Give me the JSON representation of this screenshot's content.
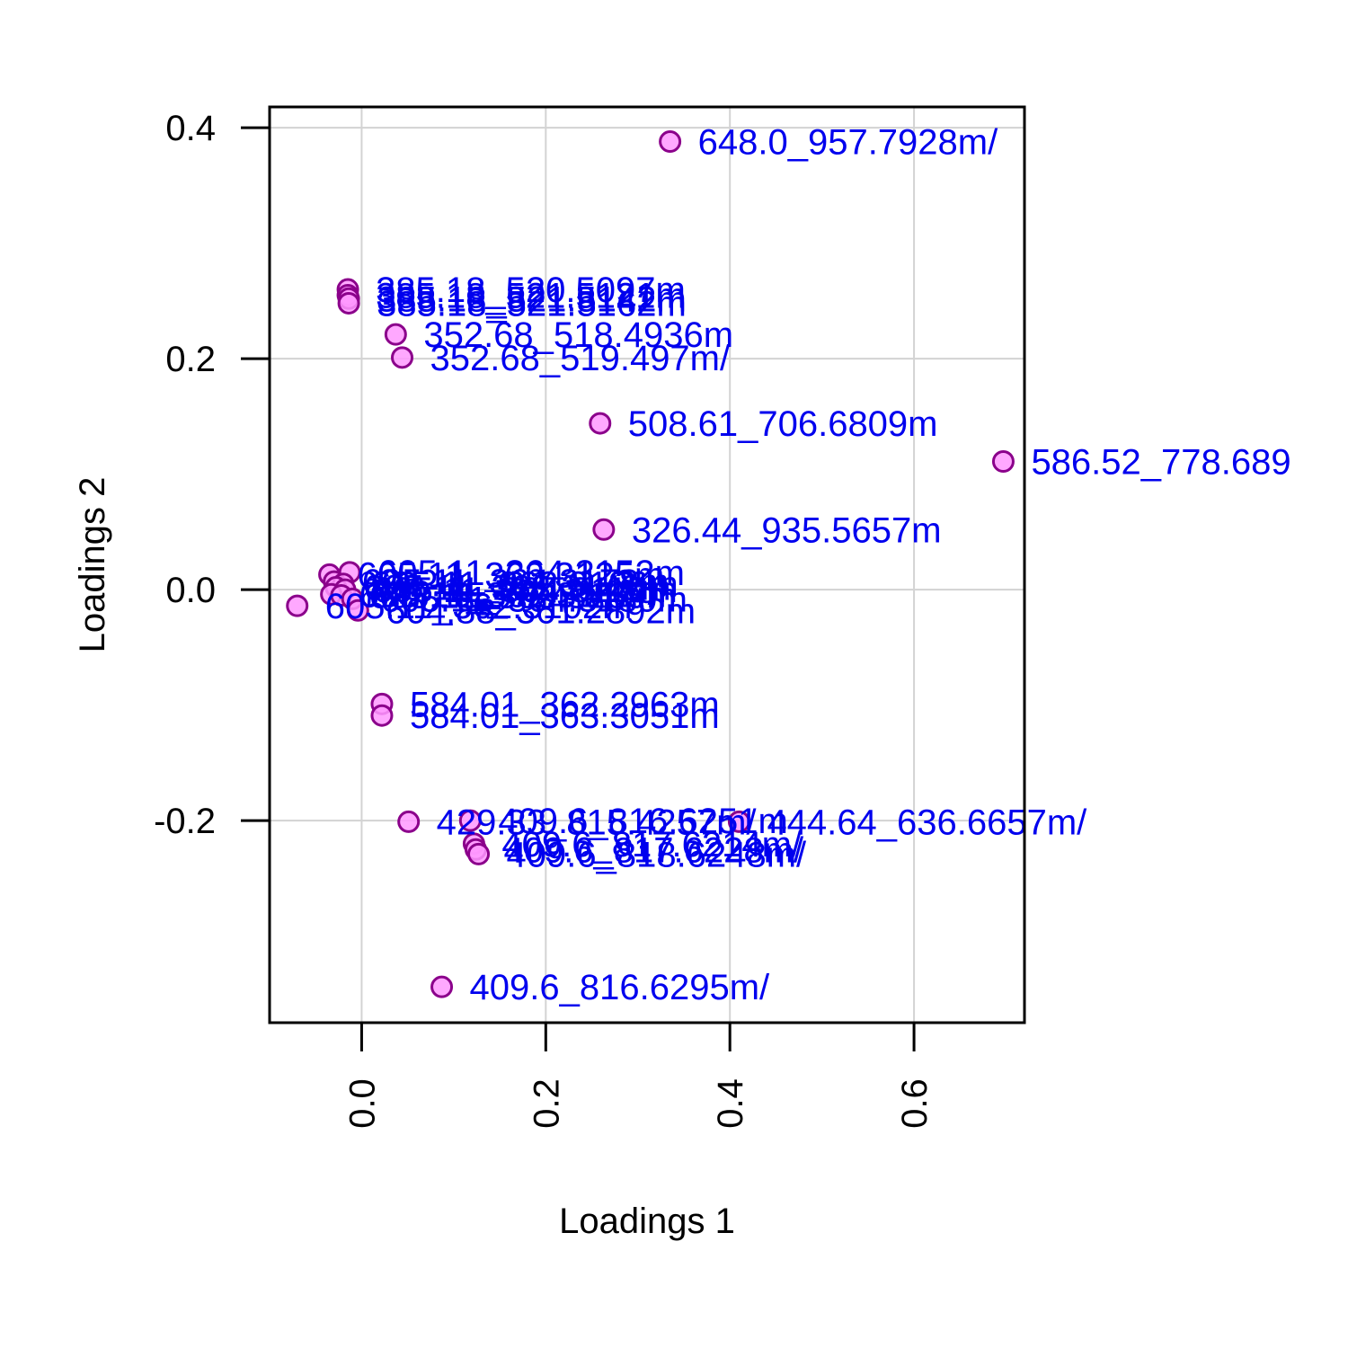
{
  "chart_data": {
    "type": "scatter",
    "title": "",
    "xlabel": "Loadings 1",
    "ylabel": "Loadings 2",
    "xlim": [
      -0.1,
      0.72
    ],
    "ylim": [
      -0.375,
      0.418
    ],
    "x_ticks": [
      0.0,
      0.2,
      0.4,
      0.6
    ],
    "x_tick_labels": [
      "0.0",
      "0.2",
      "0.4",
      "0.6"
    ],
    "y_ticks": [
      -0.2,
      0.0,
      0.2,
      0.4
    ],
    "y_tick_labels": [
      "-0.2",
      "0.0",
      "0.2",
      "0.4"
    ],
    "grid": true,
    "legend": false,
    "colors": {
      "point_fill": "#ff99ff",
      "point_stroke": "#8b008b",
      "label": "#0000ee",
      "grid": "#d3d3d3",
      "axis": "#000000"
    },
    "points": [
      {
        "x": 0.335,
        "y": 0.388,
        "label": "648.0_957.7928m/"
      },
      {
        "x": -0.015,
        "y": 0.26,
        "label": "385.18_520.5097m"
      },
      {
        "x": -0.015,
        "y": 0.255,
        "label": "385.18_521.5121m"
      },
      {
        "x": -0.014,
        "y": 0.252,
        "label": "385.18_521.5142m"
      },
      {
        "x": -0.014,
        "y": 0.248,
        "label": "385.18_521.5162m"
      },
      {
        "x": 0.037,
        "y": 0.221,
        "label": "352.68_518.4936m"
      },
      {
        "x": 0.044,
        "y": 0.201,
        "label": "352.68_519.497m/"
      },
      {
        "x": 0.259,
        "y": 0.144,
        "label": "508.61_706.6809m"
      },
      {
        "x": 0.697,
        "y": 0.111,
        "label": "586.52_778.689"
      },
      {
        "x": 0.263,
        "y": 0.052,
        "label": "326.44_935.5657m"
      },
      {
        "x": -0.035,
        "y": 0.013,
        "label": "605.11_363.3125m"
      },
      {
        "x": -0.013,
        "y": 0.015,
        "label": "605.11_364.3152m"
      },
      {
        "x": -0.03,
        "y": 0.007,
        "label": "605.11_364.3178m"
      },
      {
        "x": -0.02,
        "y": 0.005,
        "label": "605.11_362.3126m"
      },
      {
        "x": -0.028,
        "y": 0.002,
        "label": "605.11_363.3143m"
      },
      {
        "x": -0.018,
        "y": 0.0,
        "label": "605.11_364.3110m"
      },
      {
        "x": -0.033,
        "y": -0.004,
        "label": "605.11_362.3141m"
      },
      {
        "x": -0.022,
        "y": -0.005,
        "label": "605.11_363.3139m"
      },
      {
        "x": -0.01,
        "y": -0.008,
        "label": "605.11_364.3189m"
      },
      {
        "x": -0.07,
        "y": -0.014,
        "label": "605.11_362.3102m"
      },
      {
        "x": -0.004,
        "y": -0.018,
        "label": "604.88_361.2892m"
      },
      {
        "x": 0.022,
        "y": -0.099,
        "label": "584.01_362.2963m"
      },
      {
        "x": 0.022,
        "y": -0.109,
        "label": "584.01_363.3051m"
      },
      {
        "x": 0.051,
        "y": -0.201,
        "label": "429.33_815.4257m/"
      },
      {
        "x": 0.118,
        "y": -0.2,
        "label": "409.6_816.6251m"
      },
      {
        "x": 0.41,
        "y": -0.201,
        "label": "444.64_636.6657m/"
      },
      {
        "x": 0.122,
        "y": -0.22,
        "label": "409.6_817.6214m/"
      },
      {
        "x": 0.124,
        "y": -0.225,
        "label": "409.6_817.6228m/"
      },
      {
        "x": 0.127,
        "y": -0.229,
        "label": "409.6_818.6248m/"
      },
      {
        "x": 0.087,
        "y": -0.344,
        "label": "409.6_816.6295m/"
      }
    ]
  }
}
